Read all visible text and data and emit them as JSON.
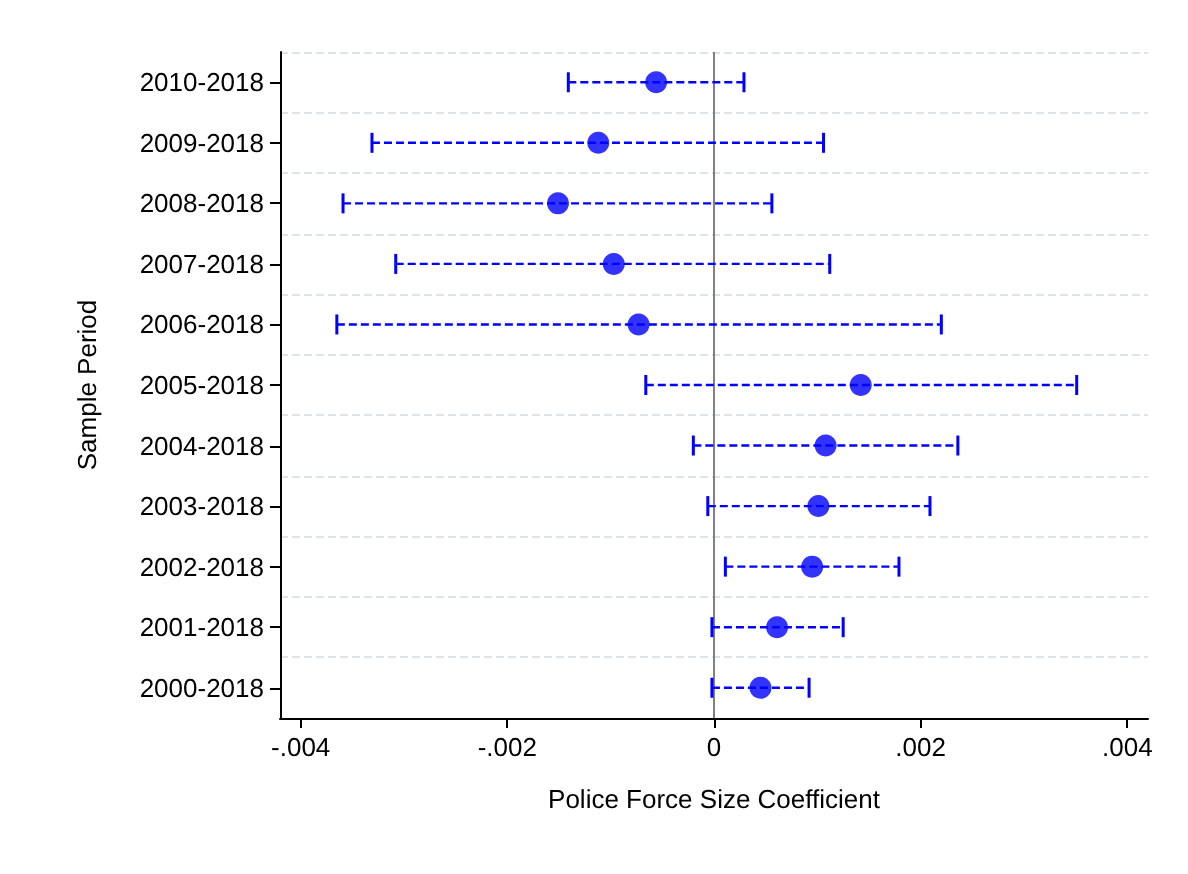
{
  "chart_data": {
    "type": "scatter",
    "orientation": "horizontal",
    "xlabel": "Police Force Size Coefficient",
    "ylabel": "Sample Period",
    "categories": [
      "2010-2018",
      "2009-2018",
      "2008-2018",
      "2007-2018",
      "2006-2018",
      "2005-2018",
      "2004-2018",
      "2003-2018",
      "2002-2018",
      "2001-2018",
      "2000-2018"
    ],
    "values": [
      -0.00056,
      -0.00112,
      -0.00151,
      -0.00097,
      -0.00073,
      0.00142,
      0.00108,
      0.00101,
      0.00095,
      0.00061,
      0.00045
    ],
    "errors": [
      [
        -0.00141,
        0.00029
      ],
      [
        -0.00331,
        0.00106
      ],
      [
        -0.00359,
        0.00056
      ],
      [
        -0.00308,
        0.00112
      ],
      [
        -0.00365,
        0.0022
      ],
      [
        -0.00066,
        0.00351
      ],
      [
        -0.0002,
        0.00236
      ],
      [
        -6e-05,
        0.00209
      ],
      [
        0.00011,
        0.00179
      ],
      [
        -2e-05,
        0.00125
      ],
      [
        -2e-05,
        0.00092
      ]
    ],
    "color": "#0000ff",
    "marker": "circle",
    "line_style": "dashed",
    "xlim": [
      -0.0042,
      0.0042
    ],
    "xticks": [
      {
        "value": -0.004,
        "label": "-.004"
      },
      {
        "value": -0.002,
        "label": "-.002"
      },
      {
        "value": 0,
        "label": "0"
      },
      {
        "value": 0.002,
        "label": ".002"
      },
      {
        "value": 0.004,
        "label": ".004"
      }
    ],
    "ref_lines": [
      {
        "axis": "x",
        "value": 0,
        "color": "#808080"
      }
    ],
    "grid": "y"
  }
}
